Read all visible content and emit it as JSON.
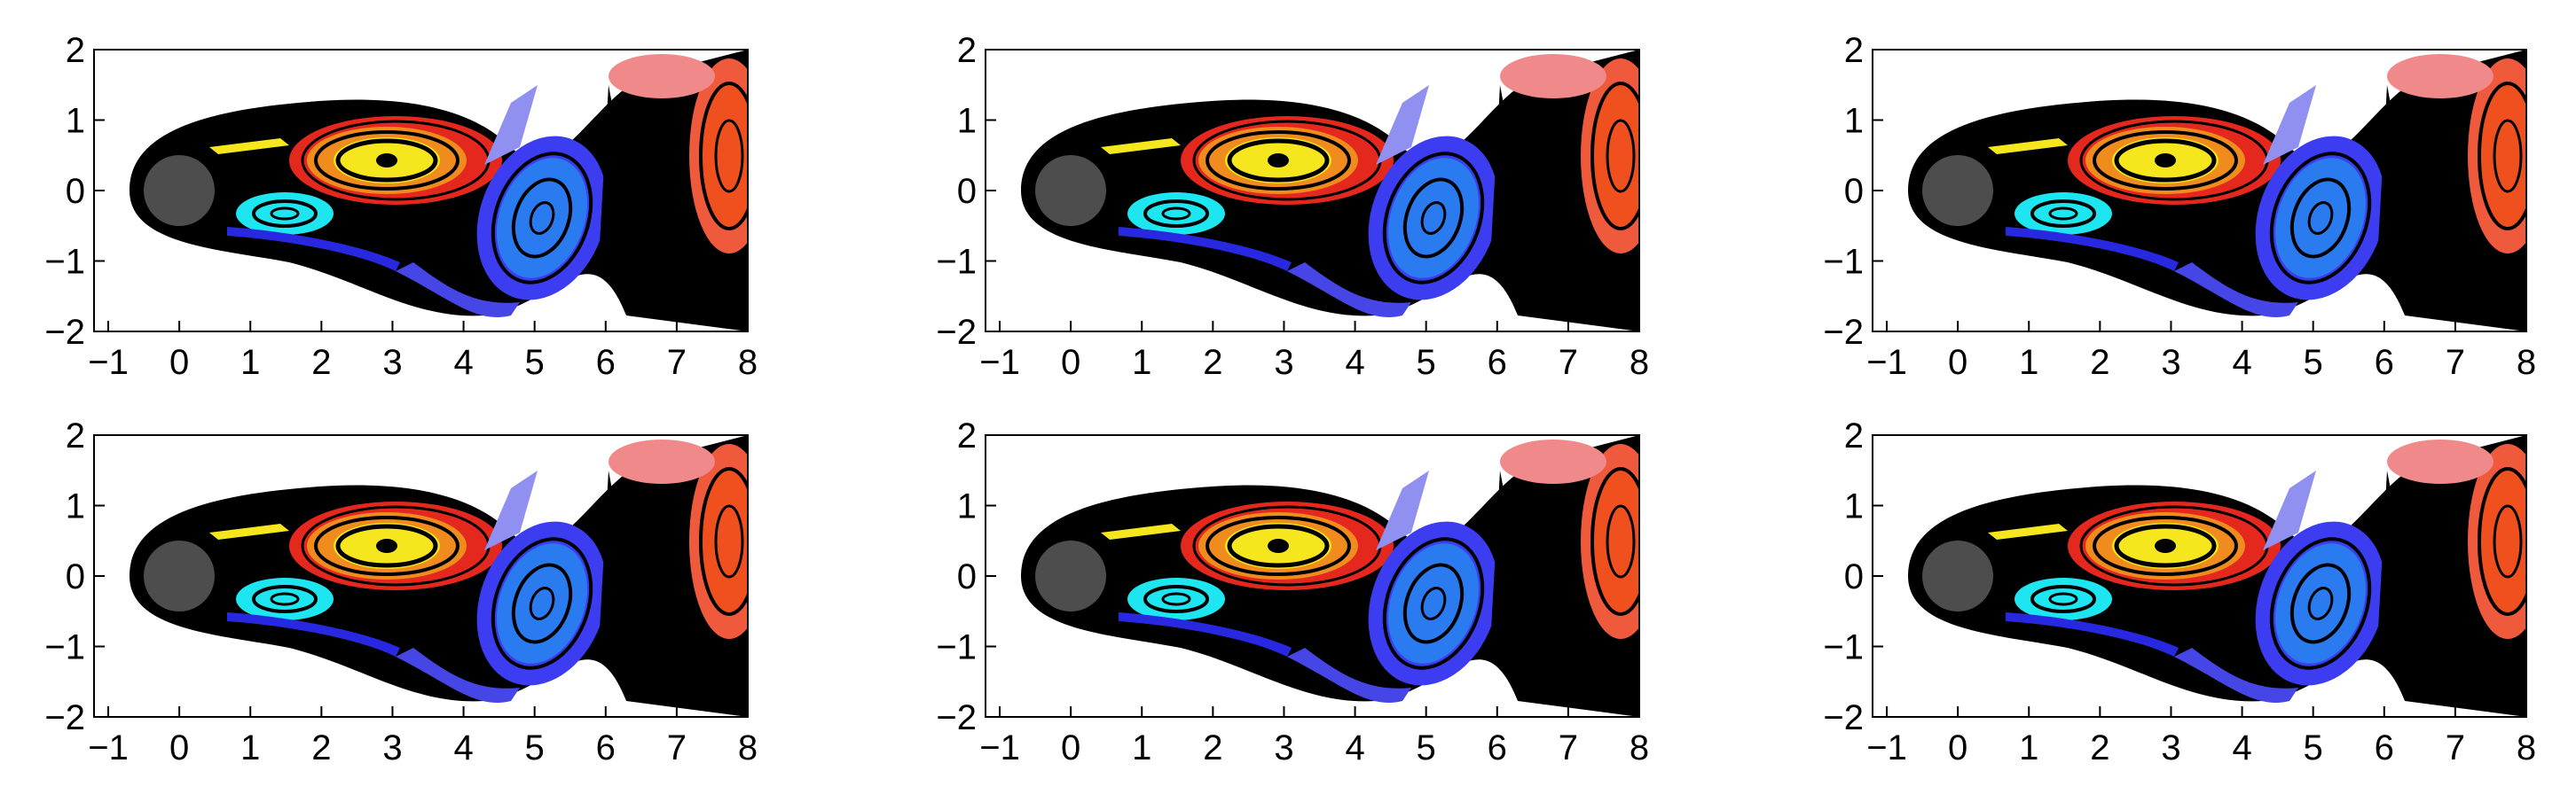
{
  "chart_data": [
    {
      "type": "image",
      "xlim": [
        -1.2,
        8
      ],
      "ylim": [
        -2,
        2
      ],
      "xticks": [
        {
          "value": -1,
          "label": "−1"
        },
        0,
        1,
        2,
        3,
        4,
        5,
        6,
        7,
        8
      ],
      "yticks": [
        {
          "value": -2,
          "label": "−2"
        },
        {
          "value": -1,
          "label": "−1"
        },
        0,
        1,
        2
      ]
    },
    {
      "type": "image",
      "xlim": [
        -1.2,
        8
      ],
      "ylim": [
        -2,
        2
      ],
      "xticks": [
        {
          "value": -1,
          "label": "−1"
        },
        0,
        1,
        2,
        3,
        4,
        5,
        6,
        7,
        8
      ],
      "yticks": [
        {
          "value": -2,
          "label": "−2"
        },
        {
          "value": -1,
          "label": "−1"
        },
        0,
        1,
        2
      ]
    },
    {
      "type": "image",
      "xlim": [
        -1.2,
        8
      ],
      "ylim": [
        -2,
        2
      ],
      "xticks": [
        {
          "value": -1,
          "label": "−1"
        },
        0,
        1,
        2,
        3,
        4,
        5,
        6,
        7,
        8
      ],
      "yticks": [
        {
          "value": -2,
          "label": "−2"
        },
        {
          "value": -1,
          "label": "−1"
        },
        0,
        1,
        2
      ]
    },
    {
      "type": "image",
      "xlim": [
        -1.2,
        8
      ],
      "ylim": [
        -2,
        2
      ],
      "xticks": [
        {
          "value": -1,
          "label": "−1"
        },
        0,
        1,
        2,
        3,
        4,
        5,
        6,
        7,
        8
      ],
      "yticks": [
        {
          "value": -2,
          "label": "−2"
        },
        {
          "value": -1,
          "label": "−1"
        },
        0,
        1,
        2
      ]
    },
    {
      "type": "image",
      "xlim": [
        -1.2,
        8
      ],
      "ylim": [
        -2,
        2
      ],
      "xticks": [
        {
          "value": -1,
          "label": "−1"
        },
        0,
        1,
        2,
        3,
        4,
        5,
        6,
        7,
        8
      ],
      "yticks": [
        {
          "value": -2,
          "label": "−2"
        },
        {
          "value": -1,
          "label": "−1"
        },
        0,
        1,
        2
      ]
    },
    {
      "type": "image",
      "xlim": [
        -1.2,
        8
      ],
      "ylim": [
        -2,
        2
      ],
      "xticks": [
        {
          "value": -1,
          "label": "−1"
        },
        0,
        1,
        2,
        3,
        4,
        5,
        6,
        7,
        8
      ],
      "yticks": [
        {
          "value": -2,
          "label": "−2"
        },
        {
          "value": -1,
          "label": "−1"
        },
        0,
        1,
        2
      ]
    }
  ]
}
